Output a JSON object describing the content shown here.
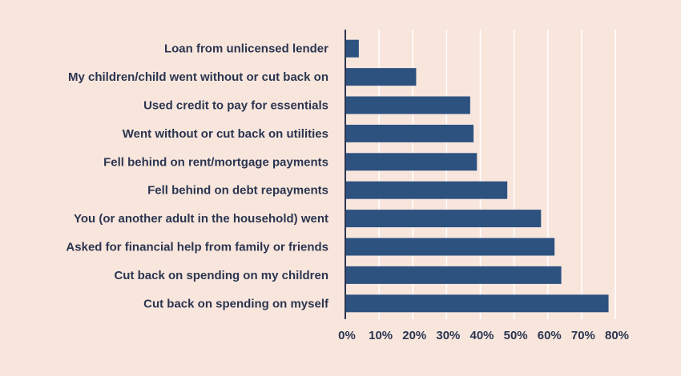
{
  "chart_data": {
    "type": "bar",
    "orientation": "horizontal",
    "categories": [
      "Loan from unlicensed lender",
      "My children/child went without or cut back on",
      "Used credit to pay for essentials",
      "Went without or cut back on utilities",
      "Fell behind on rent/mortgage payments",
      "Fell behind on debt repayments",
      "You (or another adult in the household) went",
      "Asked for financial help from family or friends",
      "Cut back on spending on my children",
      "Cut back on spending on myself"
    ],
    "values": [
      4,
      21,
      37,
      38,
      39,
      48,
      58,
      62,
      64,
      78
    ],
    "xlim": [
      0,
      80
    ],
    "ticks": [
      0,
      10,
      20,
      30,
      40,
      50,
      60,
      70,
      80
    ],
    "tick_suffix": "%",
    "grid": true,
    "bar_color": "#2d5280",
    "text_color": "#2b3550",
    "background": "#f8e6dd"
  }
}
